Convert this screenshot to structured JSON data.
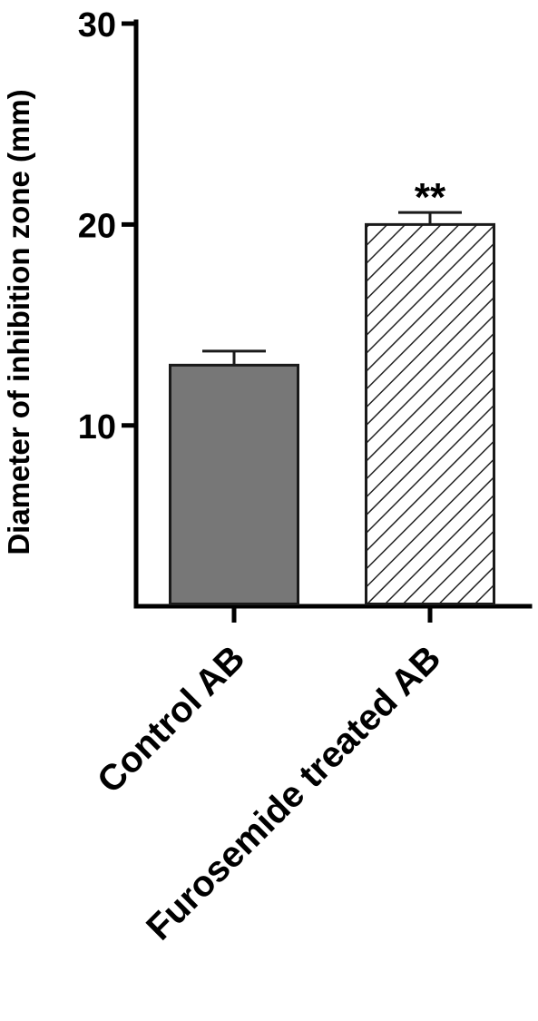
{
  "chart_data": {
    "type": "bar",
    "ylabel": "Diameter of inhibition zone (mm)",
    "xlabel": "",
    "ylim": [
      1,
      30
    ],
    "yticks": [
      10,
      20,
      30
    ],
    "grid": false,
    "categories": [
      "Control AB",
      "Furosemide treated AB"
    ],
    "values": [
      13,
      20
    ],
    "errors": [
      0.7,
      0.6
    ],
    "annotations": [
      "",
      "**"
    ],
    "fills": [
      "solid",
      "hatched"
    ],
    "colors": {
      "solid": "#777777",
      "hatch_stroke": "#222222",
      "hatch_bg": "#ffffff"
    }
  }
}
